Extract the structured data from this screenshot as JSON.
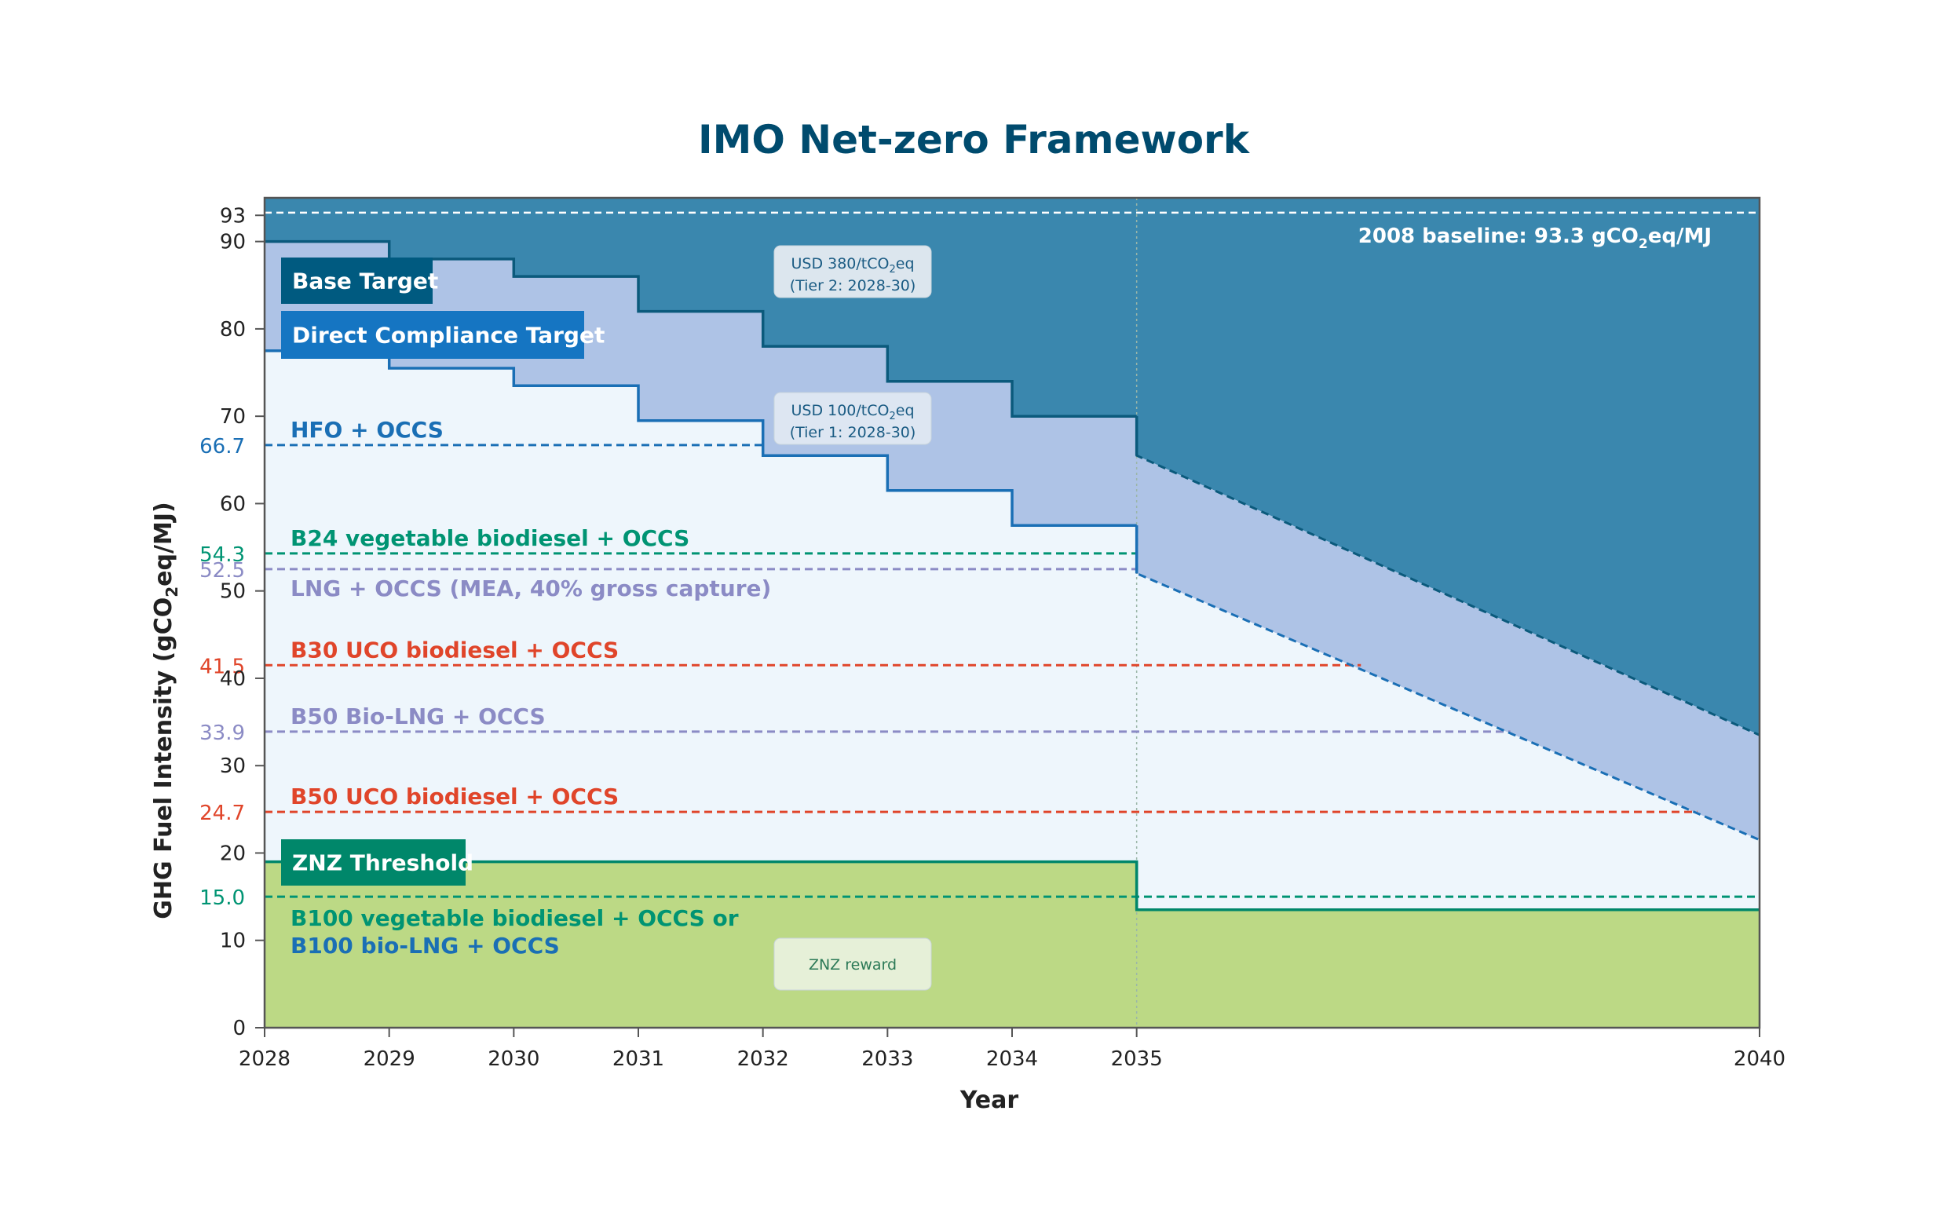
{
  "chart_data": {
    "type": "area",
    "title": "IMO Net-zero Framework",
    "xlabel": "Year",
    "ylabel": "GHG Fuel Intensity (gCO₂eq/MJ)",
    "xlim": [
      2028,
      2040
    ],
    "ylim": [
      0,
      95
    ],
    "x_ticks": [
      "2028",
      "2029",
      "2030",
      "2031",
      "2032",
      "2033",
      "2034",
      "2035",
      "2040"
    ],
    "y_ticks": [
      "0",
      "10",
      "20",
      "30",
      "40",
      "50",
      "60",
      "70",
      "80",
      "90",
      "93"
    ],
    "series": [
      {
        "name": "Base Target",
        "color": "#005a80",
        "steps": [
          {
            "x0": 2028,
            "x1": 2029,
            "y": 90.0
          },
          {
            "x0": 2029,
            "x1": 2030,
            "y": 88.0
          },
          {
            "x0": 2030,
            "x1": 2031,
            "y": 86.0
          },
          {
            "x0": 2031,
            "x1": 2032,
            "y": 82.0
          },
          {
            "x0": 2032,
            "x1": 2033,
            "y": 78.0
          },
          {
            "x0": 2033,
            "x1": 2034,
            "y": 74.0
          },
          {
            "x0": 2034,
            "x1": 2035,
            "y": 70.0
          }
        ],
        "projection": [
          [
            2035,
            65.5
          ],
          [
            2040,
            33.5
          ]
        ]
      },
      {
        "name": "Direct Compliance Target",
        "color": "#1a6fb5",
        "steps": [
          {
            "x0": 2028,
            "x1": 2029,
            "y": 77.5
          },
          {
            "x0": 2029,
            "x1": 2030,
            "y": 75.5
          },
          {
            "x0": 2030,
            "x1": 2031,
            "y": 73.5
          },
          {
            "x0": 2031,
            "x1": 2032,
            "y": 69.5
          },
          {
            "x0": 2032,
            "x1": 2033,
            "y": 65.5
          },
          {
            "x0": 2033,
            "x1": 2034,
            "y": 61.5
          },
          {
            "x0": 2034,
            "x1": 2035,
            "y": 57.5
          }
        ],
        "projection": [
          [
            2035,
            52.0
          ],
          [
            2040,
            21.5
          ]
        ]
      },
      {
        "name": "ZNZ Threshold",
        "color": "#00876a",
        "steps": [
          {
            "x0": 2028,
            "x1": 2035,
            "y": 19.0
          },
          {
            "x0": 2035,
            "x1": 2040,
            "y": 13.5
          }
        ]
      }
    ],
    "baseline": {
      "label": "2008 baseline: 93.3 gCO₂eq/MJ",
      "value": 93.3
    },
    "reference_lines": [
      {
        "label": "HFO + OCCS",
        "value": 66.7,
        "value_label": "66.7",
        "color": "#1a6fb5",
        "x_end": 2032
      },
      {
        "label": "B24 vegetable biodiesel + OCCS",
        "value": 54.3,
        "value_label": "54.3",
        "color": "#009473",
        "x_end": 2035
      },
      {
        "label": "LNG + OCCS (MEA, 40% gross capture)",
        "value": 52.5,
        "value_label": "52.5",
        "color": "#8b8bc5",
        "x_end": 2035
      },
      {
        "label": "B30 UCO biodiesel + OCCS",
        "value": 41.5,
        "value_label": "41.5",
        "color": "#e0452a",
        "x_end": 2036.8
      },
      {
        "label": "B50 Bio-LNG + OCCS",
        "value": 33.9,
        "value_label": "33.9",
        "color": "#8b8bc5",
        "x_end": 2038.0
      },
      {
        "label": "B50 UCO biodiesel + OCCS",
        "value": 24.7,
        "value_label": "24.7",
        "color": "#e0452a",
        "x_end": 2039.5
      },
      {
        "label": "B100 vegetable biodiesel + OCCS or",
        "label2": "B100 bio-LNG + OCCS",
        "value": 15.0,
        "value_label": "15.0",
        "color": "#009473",
        "x_end": 2040
      }
    ],
    "annotations": [
      {
        "line1": "USD 380/tCO₂eq",
        "line2": "(Tier 2: 2028-30)"
      },
      {
        "line1": "USD 100/tCO₂eq",
        "line2": "(Tier 1: 2028-30)"
      },
      {
        "line1": "ZNZ reward",
        "line2": ""
      }
    ],
    "grid": false,
    "legend": "labels placed on chart"
  }
}
